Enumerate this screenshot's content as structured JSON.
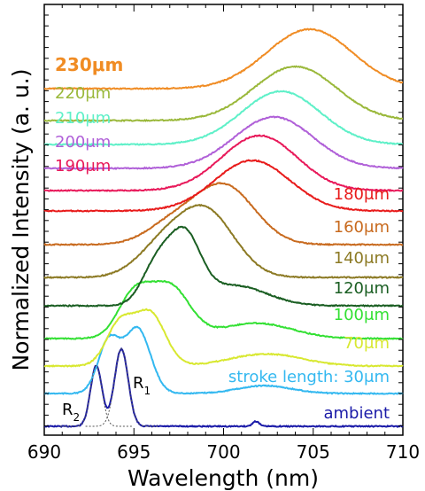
{
  "chart_data": {
    "type": "line",
    "xlabel": "Wavelength (nm)",
    "ylabel": "Normalized Intensity (a. u.)",
    "xlim": [
      690,
      710
    ],
    "x_ticks": [
      690,
      695,
      700,
      705,
      710
    ],
    "x_tick_labels": [
      "690",
      "695",
      "700",
      "705",
      "710"
    ],
    "y_ticks": "unlabeled",
    "grid": false,
    "legend": "inline labels beside each curve",
    "series": [
      {
        "name": "ambient",
        "color": "#1a1aa8",
        "peaks": [
          [
            692.9,
            0.72
          ],
          [
            694.3,
            0.92
          ],
          [
            701.8,
            0.06
          ]
        ]
      },
      {
        "name": "stroke length: 30μm",
        "color": "#33b8f0",
        "peaks": [
          [
            693.6,
            0.8
          ],
          [
            695.2,
            1.0
          ],
          [
            702.3,
            0.12
          ]
        ]
      },
      {
        "name": "70μm",
        "color": "#d8e830",
        "peaks": [
          [
            694.2,
            0.75
          ],
          [
            695.9,
            0.95
          ],
          [
            702.4,
            0.22
          ]
        ]
      },
      {
        "name": "100μm",
        "color": "#33e033",
        "peaks": [
          [
            695.0,
            0.82
          ],
          [
            697.0,
            1.0
          ],
          [
            701.8,
            0.3
          ]
        ]
      },
      {
        "name": "120μm",
        "color": "#1a5e22",
        "peaks": [
          [
            696.2,
            0.55
          ],
          [
            697.8,
            1.0
          ],
          [
            700.6,
            0.3
          ]
        ]
      },
      {
        "name": "140μm",
        "color": "#8c7a24",
        "peaks": [
          [
            696.5,
            0.4
          ],
          [
            699.0,
            1.0
          ]
        ]
      },
      {
        "name": "160μm",
        "color": "#c86a1e",
        "peaks": [
          [
            697.0,
            0.3
          ],
          [
            700.0,
            1.0
          ]
        ]
      },
      {
        "name": "180μm",
        "color": "#e81a1a",
        "peaks": [
          [
            701.6,
            1.0
          ]
        ]
      },
      {
        "name": "190μm",
        "color": "#e8195a",
        "peaks": [
          [
            702.0,
            1.0
          ]
        ]
      },
      {
        "name": "200μm",
        "color": "#b060d8",
        "peaks": [
          [
            702.8,
            1.0
          ]
        ]
      },
      {
        "name": "210μm",
        "color": "#5ef0c8",
        "peaks": [
          [
            703.2,
            1.0
          ]
        ]
      },
      {
        "name": "220μm",
        "color": "#9ab83a",
        "peaks": [
          [
            704.0,
            1.0
          ]
        ]
      },
      {
        "name": "230μm",
        "color": "#f08c24",
        "peaks": [
          [
            704.8,
            1.0
          ]
        ]
      }
    ],
    "annotations": [
      "R2",
      "R1"
    ]
  }
}
